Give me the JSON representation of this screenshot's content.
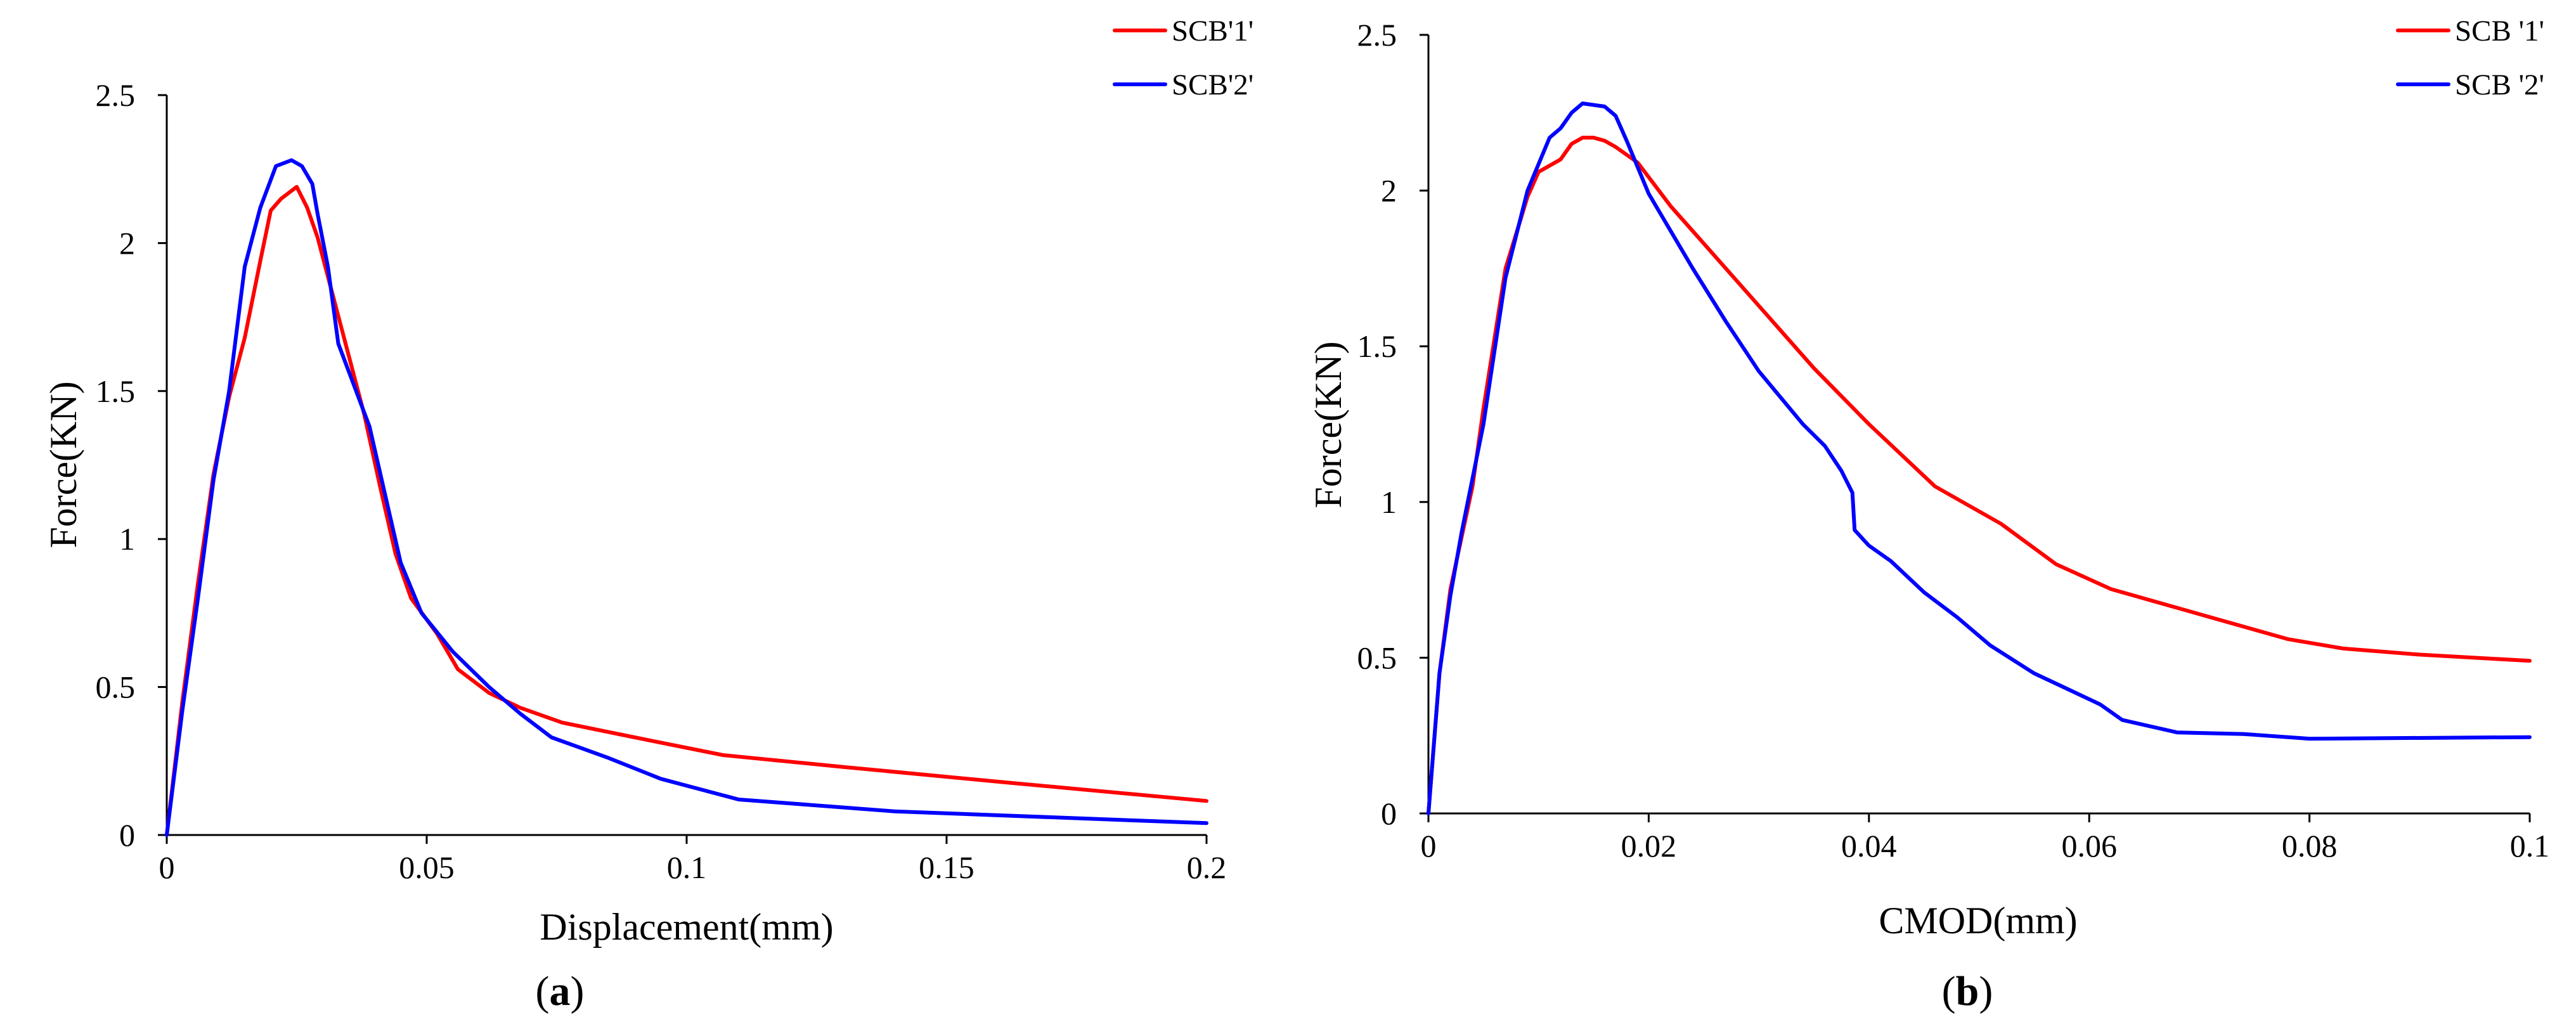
{
  "chart_data": [
    {
      "type": "line",
      "panel_label": "a",
      "xlabel": "Displacement(mm)",
      "ylabel": "Force(KN)",
      "xlim": [
        0,
        0.2
      ],
      "ylim": [
        0,
        2.5
      ],
      "x_ticks": [
        "0",
        "0.05",
        "0.1",
        "0.15",
        "0.2"
      ],
      "y_ticks": [
        "0",
        "0.5",
        "1",
        "1.5",
        "2",
        "2.5"
      ],
      "legend_position": "top-right",
      "grid": false,
      "series": [
        {
          "name": "SCB'1'",
          "color": "#ff0000",
          "points": [
            [
              0,
              0
            ],
            [
              0.003,
              0.45
            ],
            [
              0.006,
              0.85
            ],
            [
              0.009,
              1.22
            ],
            [
              0.012,
              1.48
            ],
            [
              0.015,
              1.68
            ],
            [
              0.018,
              1.94
            ],
            [
              0.02,
              2.11
            ],
            [
              0.022,
              2.15
            ],
            [
              0.025,
              2.19
            ],
            [
              0.027,
              2.12
            ],
            [
              0.029,
              2.02
            ],
            [
              0.032,
              1.82
            ],
            [
              0.035,
              1.62
            ],
            [
              0.038,
              1.42
            ],
            [
              0.041,
              1.18
            ],
            [
              0.044,
              0.95
            ],
            [
              0.047,
              0.8
            ],
            [
              0.052,
              0.68
            ],
            [
              0.056,
              0.56
            ],
            [
              0.062,
              0.48
            ],
            [
              0.068,
              0.43
            ],
            [
              0.076,
              0.38
            ],
            [
              0.09,
              0.33
            ],
            [
              0.107,
              0.27
            ],
            [
              0.13,
              0.23
            ],
            [
              0.16,
              0.18
            ],
            [
              0.2,
              0.115
            ]
          ]
        },
        {
          "name": "SCB'2'",
          "color": "#0000ff",
          "points": [
            [
              0,
              0
            ],
            [
              0.003,
              0.42
            ],
            [
              0.006,
              0.8
            ],
            [
              0.009,
              1.2
            ],
            [
              0.012,
              1.5
            ],
            [
              0.015,
              1.92
            ],
            [
              0.018,
              2.12
            ],
            [
              0.021,
              2.26
            ],
            [
              0.024,
              2.28
            ],
            [
              0.026,
              2.26
            ],
            [
              0.028,
              2.2
            ],
            [
              0.029,
              2.1
            ],
            [
              0.031,
              1.92
            ],
            [
              0.033,
              1.66
            ],
            [
              0.036,
              1.52
            ],
            [
              0.039,
              1.38
            ],
            [
              0.042,
              1.15
            ],
            [
              0.045,
              0.92
            ],
            [
              0.049,
              0.75
            ],
            [
              0.055,
              0.62
            ],
            [
              0.062,
              0.5
            ],
            [
              0.068,
              0.41
            ],
            [
              0.074,
              0.33
            ],
            [
              0.085,
              0.26
            ],
            [
              0.095,
              0.19
            ],
            [
              0.11,
              0.12
            ],
            [
              0.14,
              0.08
            ],
            [
              0.2,
              0.04
            ]
          ]
        }
      ]
    },
    {
      "type": "line",
      "panel_label": "b",
      "xlabel": "CMOD(mm)",
      "ylabel": "Force(KN)",
      "xlim": [
        0,
        0.1
      ],
      "ylim": [
        0,
        2.5
      ],
      "x_ticks": [
        "0",
        "0.02",
        "0.04",
        "0.06",
        "0.08",
        "0.1"
      ],
      "y_ticks": [
        "0",
        "0.5",
        "1",
        "1.5",
        "2",
        "2.5"
      ],
      "legend_position": "top-right",
      "grid": false,
      "series": [
        {
          "name": "SCB '1'",
          "color": "#ff0000",
          "points": [
            [
              0,
              0
            ],
            [
              0.001,
              0.45
            ],
            [
              0.002,
              0.72
            ],
            [
              0.004,
              1.05
            ],
            [
              0.005,
              1.3
            ],
            [
              0.007,
              1.75
            ],
            [
              0.009,
              1.98
            ],
            [
              0.01,
              2.06
            ],
            [
              0.012,
              2.1
            ],
            [
              0.013,
              2.15
            ],
            [
              0.014,
              2.17
            ],
            [
              0.015,
              2.17
            ],
            [
              0.016,
              2.16
            ],
            [
              0.017,
              2.14
            ],
            [
              0.019,
              2.09
            ],
            [
              0.022,
              1.95
            ],
            [
              0.025,
              1.83
            ],
            [
              0.03,
              1.63
            ],
            [
              0.035,
              1.43
            ],
            [
              0.04,
              1.25
            ],
            [
              0.046,
              1.05
            ],
            [
              0.052,
              0.93
            ],
            [
              0.057,
              0.8
            ],
            [
              0.062,
              0.72
            ],
            [
              0.07,
              0.64
            ],
            [
              0.078,
              0.56
            ],
            [
              0.083,
              0.53
            ],
            [
              0.09,
              0.51
            ],
            [
              0.1,
              0.49
            ]
          ]
        },
        {
          "name": "SCB '2'",
          "color": "#0000ff",
          "points": [
            [
              0,
              0
            ],
            [
              0.001,
              0.45
            ],
            [
              0.002,
              0.7
            ],
            [
              0.003,
              0.9
            ],
            [
              0.005,
              1.25
            ],
            [
              0.007,
              1.72
            ],
            [
              0.009,
              2.0
            ],
            [
              0.011,
              2.17
            ],
            [
              0.012,
              2.2
            ],
            [
              0.013,
              2.25
            ],
            [
              0.014,
              2.28
            ],
            [
              0.016,
              2.27
            ],
            [
              0.017,
              2.24
            ],
            [
              0.018,
              2.16
            ],
            [
              0.02,
              1.99
            ],
            [
              0.024,
              1.75
            ],
            [
              0.027,
              1.58
            ],
            [
              0.03,
              1.42
            ],
            [
              0.034,
              1.25
            ],
            [
              0.036,
              1.18
            ],
            [
              0.0375,
              1.1
            ],
            [
              0.0385,
              1.03
            ],
            [
              0.0387,
              0.91
            ],
            [
              0.04,
              0.86
            ],
            [
              0.042,
              0.81
            ],
            [
              0.045,
              0.71
            ],
            [
              0.048,
              0.63
            ],
            [
              0.051,
              0.54
            ],
            [
              0.055,
              0.45
            ],
            [
              0.058,
              0.4
            ],
            [
              0.061,
              0.35
            ],
            [
              0.063,
              0.3
            ],
            [
              0.068,
              0.26
            ],
            [
              0.074,
              0.255
            ],
            [
              0.08,
              0.24
            ],
            [
              0.1,
              0.245
            ]
          ]
        }
      ]
    }
  ]
}
